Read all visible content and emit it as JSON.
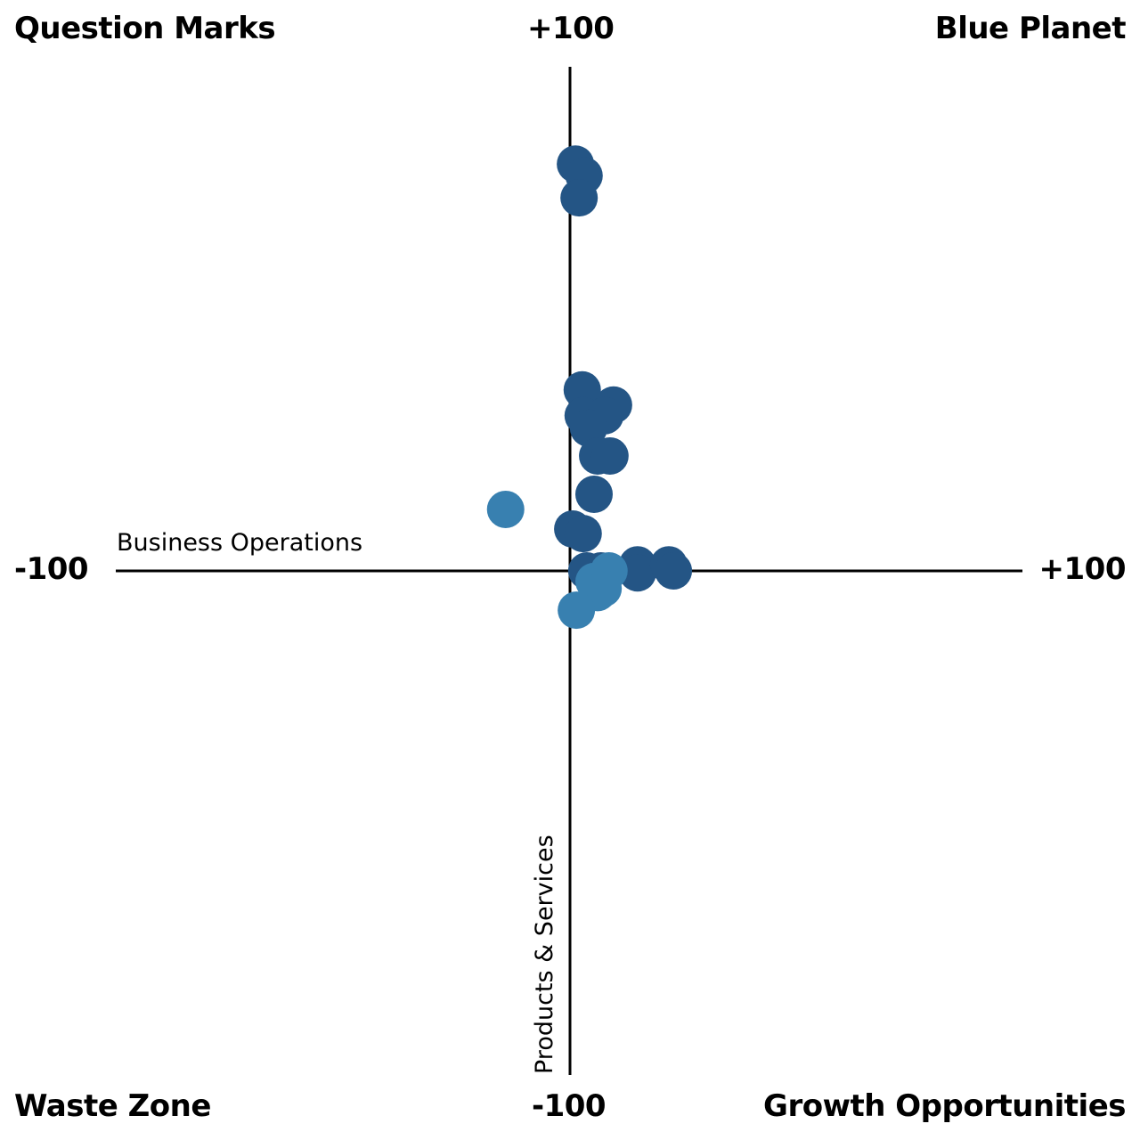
{
  "chart_data": {
    "type": "scatter",
    "title": "",
    "quadrants": {
      "top_left": "Question Marks",
      "top_right": "Blue Planet",
      "bottom_left": "Waste Zone",
      "bottom_right": "Growth Opportunities"
    },
    "xlabel": "Business Operations",
    "ylabel": "Products & Services",
    "xlim": [
      -100,
      100
    ],
    "ylim": [
      -100,
      100
    ],
    "tick_labels": {
      "x_min": "-100",
      "x_max": "+100",
      "y_min": "-100",
      "y_max": "+100"
    },
    "grid": false,
    "series": [
      {
        "name": "dark",
        "color": "#245585",
        "points": [
          [
            1.4,
            80.7
          ],
          [
            3.3,
            78.4
          ],
          [
            2.2,
            74
          ],
          [
            2.9,
            35.9
          ],
          [
            9.8,
            32.9
          ],
          [
            3.1,
            30.8
          ],
          [
            7.9,
            30.8
          ],
          [
            4.3,
            28.3
          ],
          [
            6.3,
            22.8
          ],
          [
            9,
            22.8
          ],
          [
            5.5,
            15.2
          ],
          [
            0.8,
            8.3
          ],
          [
            3.1,
            7.4
          ],
          [
            3.9,
            0
          ],
          [
            7,
            0
          ],
          [
            15.1,
            1.2
          ],
          [
            15.1,
            -0.4
          ],
          [
            22,
            1.2
          ],
          [
            23,
            0
          ]
        ]
      },
      {
        "name": "light",
        "color": "#3880b0",
        "points": [
          [
            -14,
            12.2
          ],
          [
            8.8,
            0
          ],
          [
            5.5,
            -2.1
          ],
          [
            7.5,
            -3.5
          ],
          [
            6.3,
            -4.3
          ],
          [
            1.6,
            -7.8
          ]
        ]
      }
    ]
  }
}
